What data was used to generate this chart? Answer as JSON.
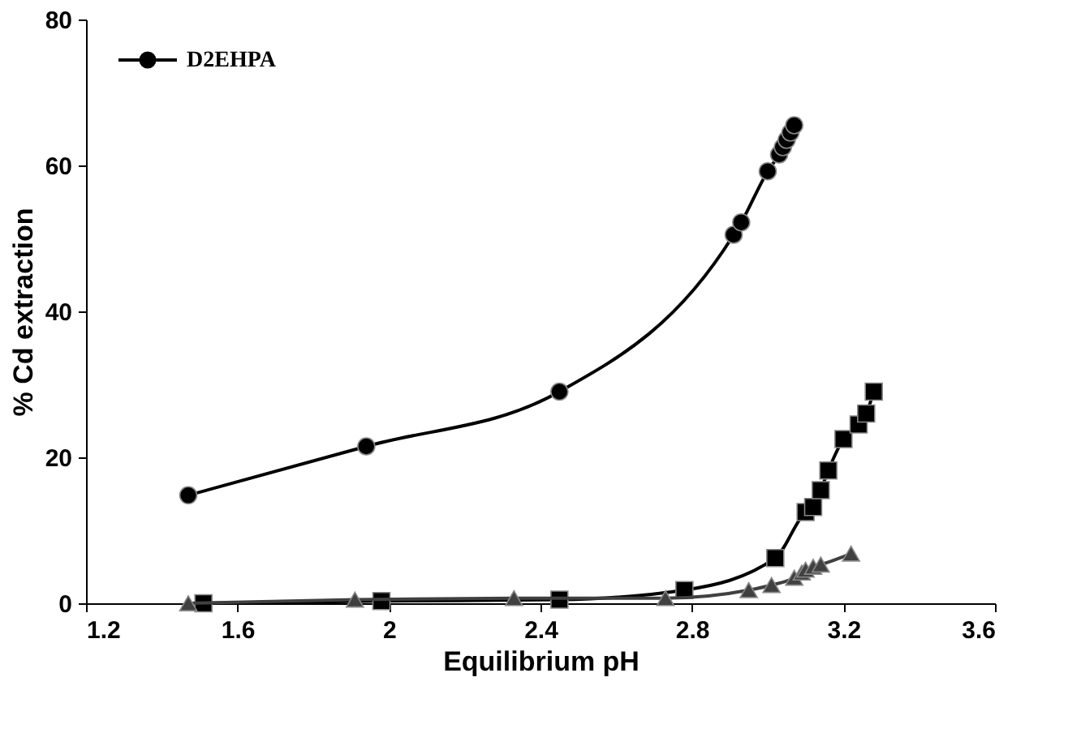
{
  "chart_data": {
    "type": "line",
    "xlabel": "Equilibrium pH",
    "ylabel": "% Cd extraction",
    "xlim": [
      1.2,
      3.6
    ],
    "xticks": [
      1.2,
      1.6,
      2,
      2.4,
      2.8,
      3.2,
      3.6
    ],
    "ylim": [
      0,
      80
    ],
    "yticks": [
      0,
      20,
      40,
      60,
      80
    ],
    "grid": false,
    "legend": "top left",
    "line_style": "solid",
    "series": [
      {
        "name": "D2EHPA",
        "color": "#000000",
        "marker": "circle",
        "x": [
          1.47,
          1.94,
          2.45,
          2.91,
          2.93,
          3.0,
          3.03,
          3.04,
          3.05,
          3.06,
          3.07
        ],
        "values": [
          14.8,
          21.5,
          29,
          50.5,
          52.2,
          59.2,
          61.5,
          62.5,
          63.5,
          64.5,
          65.5
        ]
      },
      {
        "color": "#000000",
        "marker": "square",
        "x": [
          1.51,
          1.98,
          2.45,
          2.78,
          3.02,
          3.1,
          3.12,
          3.14,
          3.16,
          3.2,
          3.24,
          3.26,
          3.28
        ],
        "values": [
          0,
          0.3,
          0.5,
          1.8,
          6.2,
          12.5,
          13.2,
          15.5,
          18.2,
          22.5,
          24.5,
          26,
          29
        ]
      },
      {
        "color": "#404040",
        "marker": "triangle",
        "x": [
          1.47,
          1.91,
          2.33,
          2.73,
          2.95,
          3.01,
          3.07,
          3.09,
          3.1,
          3.12,
          3.14,
          3.22
        ],
        "values": [
          0,
          0.5,
          0.7,
          0.7,
          1.8,
          2.5,
          3.5,
          4.2,
          4.6,
          5,
          5.3,
          6.8
        ]
      }
    ]
  }
}
